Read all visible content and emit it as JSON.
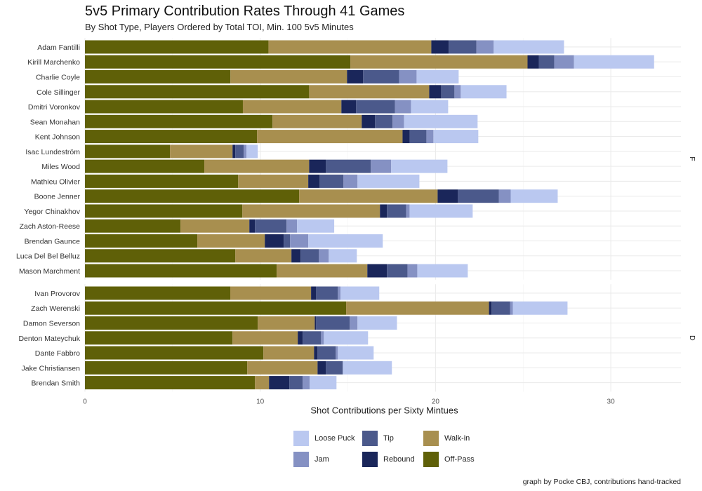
{
  "chart_data": {
    "type": "bar",
    "orientation": "horizontal",
    "stacked": true,
    "title": "5v5 Primary Contribution Rates Through 41 Games",
    "subtitle": "By Shot Type, Players Ordered by Total TOI, Min. 100 5v5 Minutes",
    "xlabel": "Shot Contributions per Sixty Mintues",
    "caption": "graph by Pocke CBJ, contributions hand-tracked",
    "xlim": [
      0,
      34
    ],
    "xticks": [
      "0",
      "10",
      "20",
      "30"
    ],
    "grid": true,
    "legend_position": "bottom",
    "series_order": [
      "Off-Pass",
      "Walk-in",
      "Rebound",
      "Tip",
      "Jam",
      "Loose Puck"
    ],
    "legend": [
      {
        "name": "Loose Puck",
        "color": "#bac8f0"
      },
      {
        "name": "Tip",
        "color": "#4b598b"
      },
      {
        "name": "Walk-in",
        "color": "#a88f4f"
      },
      {
        "name": "Jam",
        "color": "#8591c3"
      },
      {
        "name": "Rebound",
        "color": "#1a265a"
      },
      {
        "name": "Off-Pass",
        "color": "#5f6008"
      }
    ],
    "colors": {
      "Off-Pass": "#5f6008",
      "Walk-in": "#a88f4f",
      "Rebound": "#1a265a",
      "Tip": "#4b598b",
      "Jam": "#8591c3",
      "Loose Puck": "#bac8f0"
    },
    "facets": [
      {
        "label": "F",
        "players": [
          {
            "name": "Adam Fantilli",
            "values": [
              10.47,
              9.29,
              0.99,
              1.58,
              0.99,
              4.01
            ]
          },
          {
            "name": "Kirill Marchenko",
            "values": [
              15.14,
              10.11,
              0.64,
              0.88,
              1.13,
              4.57
            ]
          },
          {
            "name": "Charlie Coyle",
            "values": [
              8.3,
              6.65,
              0.92,
              2.05,
              1.0,
              2.4
            ]
          },
          {
            "name": "Cole Sillinger",
            "values": [
              12.79,
              6.85,
              0.68,
              0.76,
              0.36,
              2.61
            ]
          },
          {
            "name": "Dmitri Voronkov",
            "values": [
              9.01,
              5.62,
              0.84,
              2.21,
              0.92,
              2.12
            ]
          },
          {
            "name": "Sean Monahan",
            "values": [
              10.7,
              5.09,
              0.76,
              1.0,
              0.65,
              4.2
            ]
          },
          {
            "name": "Kent Johnson",
            "values": [
              9.82,
              8.3,
              0.4,
              0.96,
              0.4,
              2.56
            ]
          },
          {
            "name": "Isac Lundeström",
            "values": [
              4.85,
              3.57,
              0.16,
              0.48,
              0.16,
              0.64
            ]
          },
          {
            "name": "Miles Wood",
            "values": [
              6.81,
              5.98,
              0.96,
              2.56,
              1.16,
              3.21
            ]
          },
          {
            "name": "Mathieu Olivier",
            "values": [
              8.74,
              4.0,
              0.65,
              1.36,
              0.8,
              3.53
            ]
          },
          {
            "name": "Boone Jenner",
            "values": [
              12.22,
              7.9,
              1.16,
              2.33,
              0.68,
              2.68
            ]
          },
          {
            "name": "Yegor Chinakhov",
            "values": [
              8.98,
              7.85,
              0.4,
              1.09,
              0.2,
              3.6
            ]
          },
          {
            "name": "Zach Aston-Reese",
            "values": [
              5.45,
              3.93,
              0.32,
              1.8,
              0.6,
              2.12
            ]
          },
          {
            "name": "Brendan Gaunce",
            "values": [
              6.41,
              3.85,
              1.08,
              0.36,
              1.04,
              4.25
            ]
          },
          {
            "name": "Luca Del Bel Belluz",
            "values": [
              8.58,
              3.2,
              0.52,
              1.05,
              0.56,
              1.6
            ]
          },
          {
            "name": "Mason Marchment",
            "values": [
              10.94,
              5.17,
              1.12,
              1.17,
              0.56,
              2.88
            ]
          }
        ]
      },
      {
        "label": "D",
        "players": [
          {
            "name": "Ivan Provorov",
            "values": [
              8.29,
              4.61,
              0.29,
              1.24,
              0.15,
              2.21
            ]
          },
          {
            "name": "Zach Werenski",
            "values": [
              14.9,
              8.15,
              0.15,
              1.05,
              0.16,
              3.12
            ]
          },
          {
            "name": "Damon Severson",
            "values": [
              9.86,
              3.25,
              0.08,
              1.92,
              0.44,
              2.25
            ]
          },
          {
            "name": "Denton Mateychuk",
            "values": [
              8.42,
              3.72,
              0.28,
              1.05,
              0.16,
              2.52
            ]
          },
          {
            "name": "Dante Fabbro",
            "values": [
              10.18,
              2.89,
              0.2,
              1.04,
              0.12,
              2.04
            ]
          },
          {
            "name": "Jake Christiansen",
            "values": [
              9.26,
              4.01,
              0.48,
              0.96,
              0.0,
              2.8
            ]
          },
          {
            "name": "Brendan Smith",
            "values": [
              9.7,
              0.8,
              1.16,
              0.76,
              0.4,
              1.53
            ]
          }
        ]
      }
    ]
  }
}
